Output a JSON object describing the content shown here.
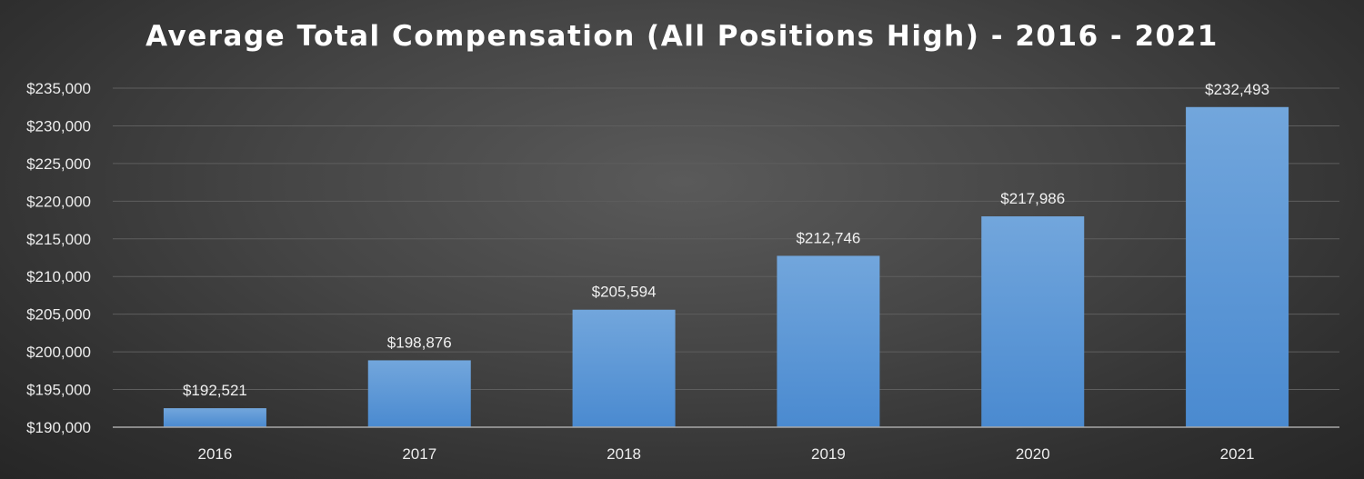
{
  "chart_data": {
    "type": "bar",
    "title": "Average Total Compensation (All Positions High) - 2016 - 2021",
    "xlabel": "",
    "ylabel": "",
    "categories": [
      "2016",
      "2017",
      "2018",
      "2019",
      "2020",
      "2021"
    ],
    "values": [
      192521,
      198876,
      205594,
      212746,
      217986,
      232493
    ],
    "data_labels": [
      "$192,521",
      "$198,876",
      "$205,594",
      "$212,746",
      "$217,986",
      "$232,493"
    ],
    "ylim": [
      190000,
      235000
    ],
    "y_ticks": [
      190000,
      195000,
      200000,
      205000,
      210000,
      215000,
      220000,
      225000,
      230000,
      235000
    ],
    "y_tick_labels": [
      "$190,000",
      "$195,000",
      "$200,000",
      "$205,000",
      "$210,000",
      "$215,000",
      "$220,000",
      "$225,000",
      "$230,000",
      "$235,000"
    ],
    "grid": true,
    "legend": "none",
    "colors": {
      "bar_top": "#72a6dc",
      "bar_bottom": "#4a8ad0",
      "gridline": "#5e5e5e",
      "axis": "#a8a8a8",
      "text": "#ececec"
    }
  }
}
